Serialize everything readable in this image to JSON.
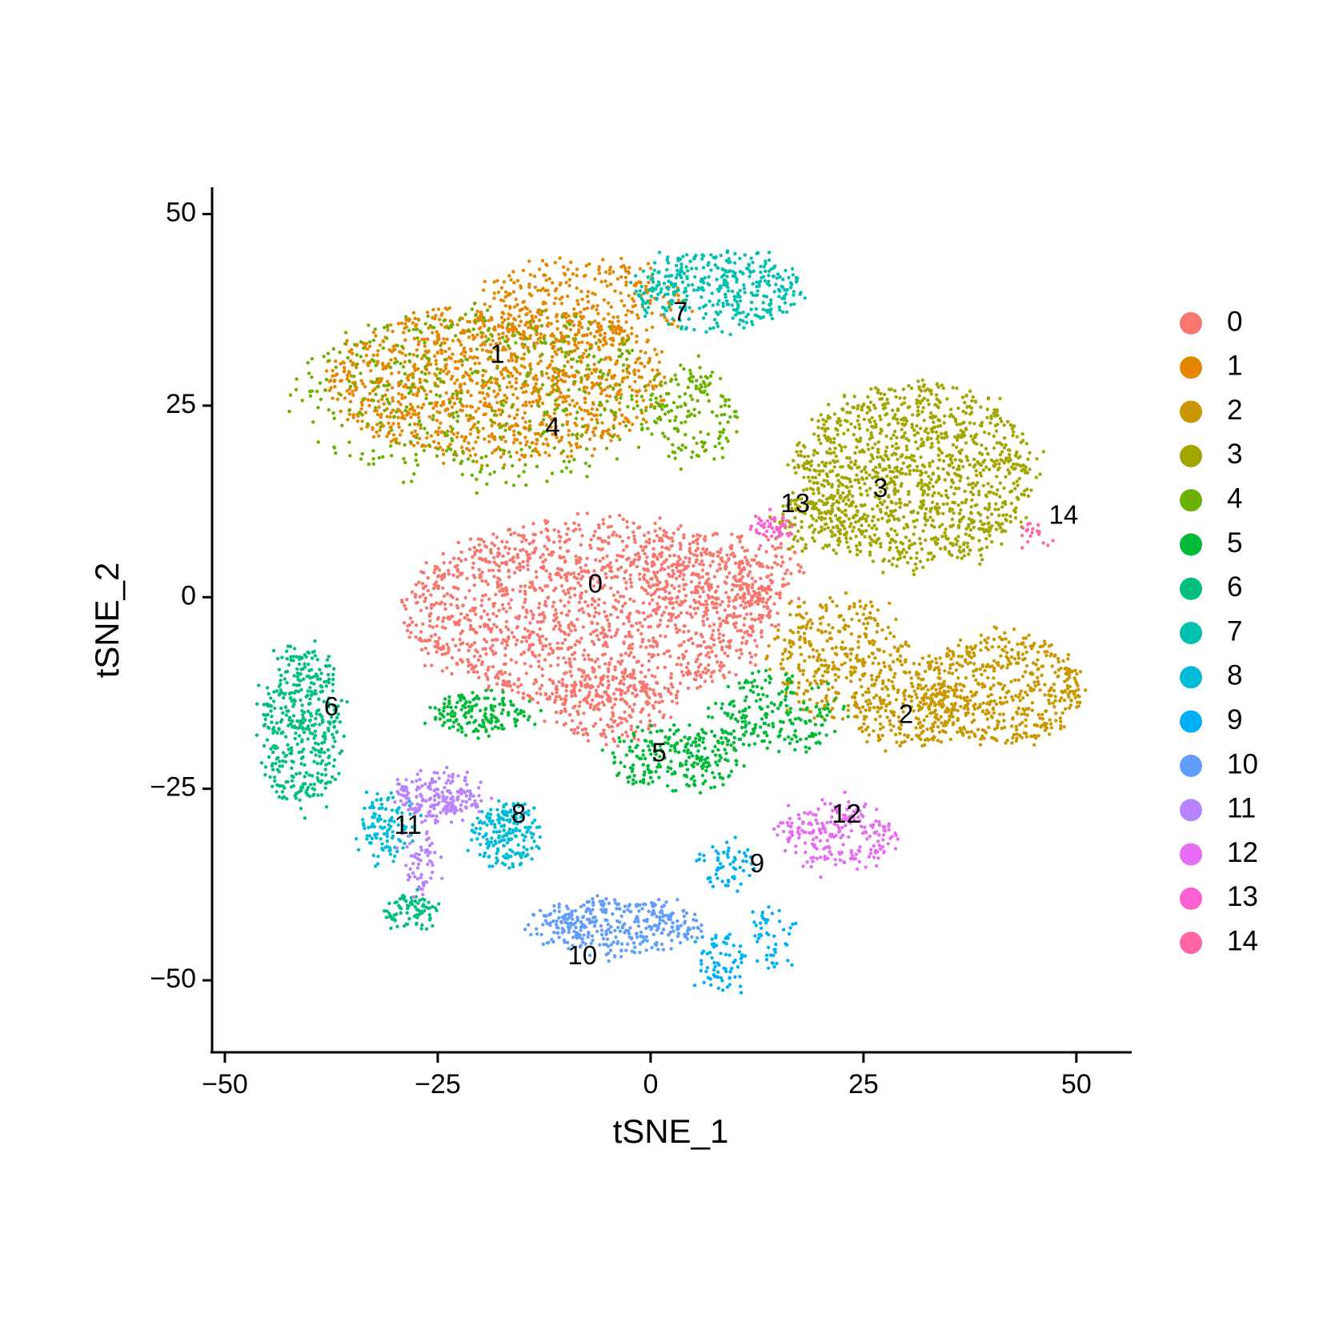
{
  "chart_data": {
    "type": "scatter",
    "xlabel": "tSNE_1",
    "ylabel": "tSNE_2",
    "xlim": [
      -51.5,
      56.5
    ],
    "ylim": [
      -59.5,
      53.5
    ],
    "x_ticks": [
      -50,
      -25,
      0,
      25,
      50
    ],
    "y_ticks": [
      -50,
      -25,
      0,
      25,
      50
    ],
    "x_tick_labels": [
      "−50",
      "−25",
      "0",
      "25",
      "50"
    ],
    "y_tick_labels": [
      "−50",
      "−25",
      "0",
      "25",
      "50"
    ],
    "grid": false,
    "legend_position": "right",
    "clusters": [
      {
        "name": "0",
        "color": "#F8766D",
        "label_pos": [
          -6.5,
          1.5
        ]
      },
      {
        "name": "1",
        "color": "#E58700",
        "label_pos": [
          -18,
          31.5
        ]
      },
      {
        "name": "2",
        "color": "#C99800",
        "label_pos": [
          30,
          -15.5
        ]
      },
      {
        "name": "3",
        "color": "#A3A500",
        "label_pos": [
          27,
          14
        ]
      },
      {
        "name": "4",
        "color": "#6BB100",
        "label_pos": [
          -11.5,
          22
        ]
      },
      {
        "name": "5",
        "color": "#00BA38",
        "label_pos": [
          1,
          -20.5
        ]
      },
      {
        "name": "6",
        "color": "#00BF7D",
        "label_pos": [
          -37.5,
          -14.5
        ]
      },
      {
        "name": "7",
        "color": "#00C0AF",
        "label_pos": [
          3.5,
          37
        ]
      },
      {
        "name": "8",
        "color": "#00BCD8",
        "label_pos": [
          -15.5,
          -28.5
        ]
      },
      {
        "name": "9",
        "color": "#00B0F6",
        "label_pos": [
          12.5,
          -35
        ]
      },
      {
        "name": "10",
        "color": "#619CFF",
        "label_pos": [
          -8,
          -47
        ]
      },
      {
        "name": "11",
        "color": "#B983FF",
        "label_pos": [
          -28.5,
          -30
        ]
      },
      {
        "name": "12",
        "color": "#E76BF3",
        "label_pos": [
          23,
          -28.5
        ]
      },
      {
        "name": "13",
        "color": "#FD61D1",
        "label_pos": [
          17,
          12
        ]
      },
      {
        "name": "14",
        "color": "#FF67A4",
        "label_pos": [
          48.5,
          10.5
        ]
      }
    ],
    "regions": [
      {
        "cluster": "0",
        "cx": -7,
        "cy": -2,
        "rx": 22,
        "ry": 12,
        "n": 1600
      },
      {
        "cluster": "0",
        "cx": 8,
        "cy": 3,
        "rx": 10,
        "ry": 5,
        "n": 250
      },
      {
        "cluster": "0",
        "cx": -5,
        "cy": -14,
        "rx": 7,
        "ry": 5,
        "n": 200
      },
      {
        "cluster": "1",
        "cx": -18,
        "cy": 28,
        "rx": 20,
        "ry": 10,
        "n": 1300
      },
      {
        "cluster": "1",
        "cx": -8,
        "cy": 38,
        "rx": 12,
        "ry": 6,
        "n": 300
      },
      {
        "cluster": "4",
        "cx": -20,
        "cy": 26,
        "rx": 22,
        "ry": 12,
        "n": 450
      },
      {
        "cluster": "4",
        "cx": 5,
        "cy": 24,
        "rx": 5,
        "ry": 6,
        "n": 150
      },
      {
        "cluster": "7",
        "cx": 8,
        "cy": 40,
        "rx": 10,
        "ry": 5,
        "n": 380
      },
      {
        "cluster": "3",
        "cx": 31,
        "cy": 16,
        "rx": 14,
        "ry": 12,
        "n": 1200
      },
      {
        "cluster": "3",
        "cx": 20,
        "cy": 10,
        "rx": 6,
        "ry": 4,
        "n": 150
      },
      {
        "cluster": "2",
        "cx": 41,
        "cy": -12,
        "rx": 10,
        "ry": 7,
        "n": 550
      },
      {
        "cluster": "2",
        "cx": 22,
        "cy": -8,
        "rx": 8,
        "ry": 8,
        "n": 350
      },
      {
        "cluster": "2",
        "cx": 30,
        "cy": -15,
        "rx": 6,
        "ry": 5,
        "n": 200
      },
      {
        "cluster": "5",
        "cx": -20,
        "cy": -15,
        "rx": 6,
        "ry": 2.5,
        "n": 160
      },
      {
        "cluster": "5",
        "cx": 3,
        "cy": -21,
        "rx": 8,
        "ry": 4,
        "n": 240
      },
      {
        "cluster": "5",
        "cx": 15,
        "cy": -15,
        "rx": 8,
        "ry": 5,
        "n": 200
      },
      {
        "cluster": "6",
        "cx": -41,
        "cy": -17,
        "rx": 4.5,
        "ry": 11,
        "n": 420
      },
      {
        "cluster": "6",
        "cx": -28,
        "cy": -41,
        "rx": 3,
        "ry": 2,
        "n": 80
      },
      {
        "cluster": "8",
        "cx": -17,
        "cy": -31,
        "rx": 4,
        "ry": 4,
        "n": 200
      },
      {
        "cluster": "8",
        "cx": -31,
        "cy": -30,
        "rx": 3,
        "ry": 4,
        "n": 110
      },
      {
        "cluster": "11",
        "cx": -25,
        "cy": -26,
        "rx": 5,
        "ry": 3,
        "n": 200
      },
      {
        "cluster": "11",
        "cx": -27,
        "cy": -35,
        "rx": 2,
        "ry": 4,
        "n": 60
      },
      {
        "cluster": "10",
        "cx": -4,
        "cy": -43,
        "rx": 10,
        "ry": 3.5,
        "n": 350
      },
      {
        "cluster": "9",
        "cx": 8,
        "cy": -48,
        "rx": 3,
        "ry": 4,
        "n": 70
      },
      {
        "cluster": "9",
        "cx": 14,
        "cy": -45,
        "rx": 2.5,
        "ry": 4,
        "n": 50
      },
      {
        "cluster": "9",
        "cx": 9,
        "cy": -35,
        "rx": 3,
        "ry": 3,
        "n": 60
      },
      {
        "cluster": "12",
        "cx": 22,
        "cy": -31,
        "rx": 7,
        "ry": 4,
        "n": 220
      },
      {
        "cluster": "13",
        "cx": 14,
        "cy": 9,
        "rx": 2,
        "ry": 1.5,
        "n": 50
      },
      {
        "cluster": "14",
        "cx": 45,
        "cy": 8,
        "rx": 0.8,
        "ry": 1.2,
        "n": 18
      }
    ]
  }
}
